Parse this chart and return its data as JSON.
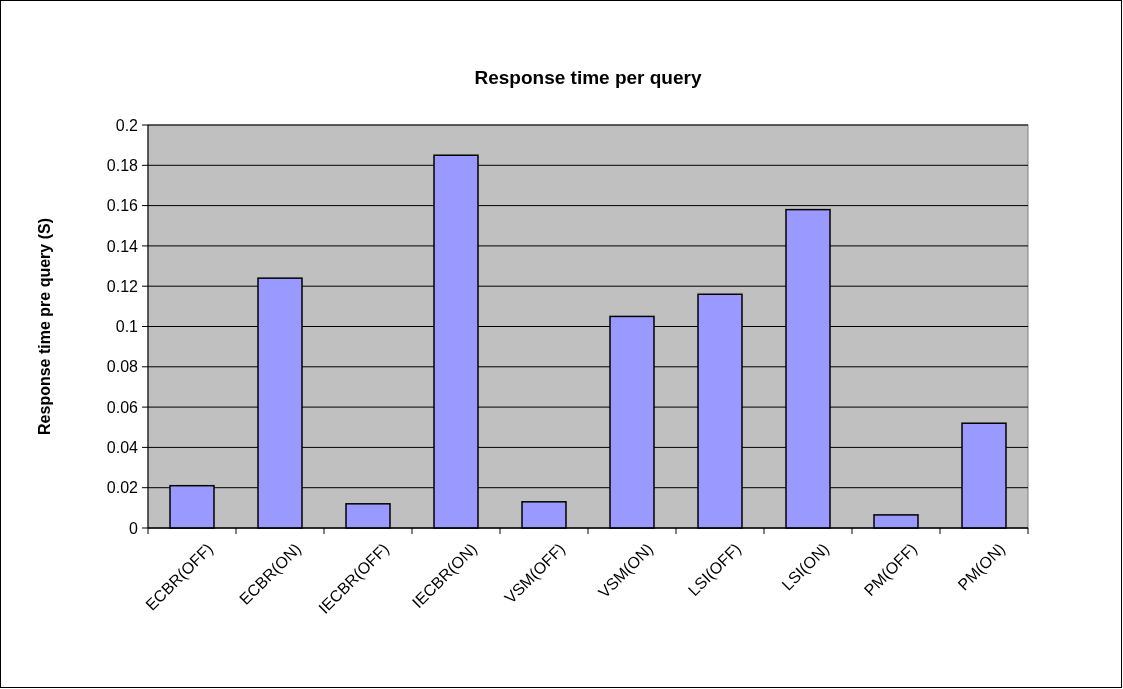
{
  "chart_data": {
    "type": "bar",
    "title": "Response time per query",
    "ylabel": "Response time pre query (S)",
    "categories": [
      "ECBR(OFF)",
      "ECBR(ON)",
      "IECBR(OFF)",
      "IECBR(ON)",
      "VSM(OFF)",
      "VSM(ON)",
      "LSI(OFF)",
      "LSI(ON)",
      "PM(OFF)",
      "PM(ON)"
    ],
    "values": [
      0.021,
      0.124,
      0.012,
      0.185,
      0.013,
      0.105,
      0.116,
      0.158,
      0.0065,
      0.052
    ],
    "color": "#9999ff",
    "ylim": [
      0,
      0.2
    ],
    "yticks": [
      0,
      0.02,
      0.04,
      0.06,
      0.08,
      0.1,
      0.12,
      0.14,
      0.16,
      0.18,
      0.2
    ],
    "grid": "y"
  }
}
